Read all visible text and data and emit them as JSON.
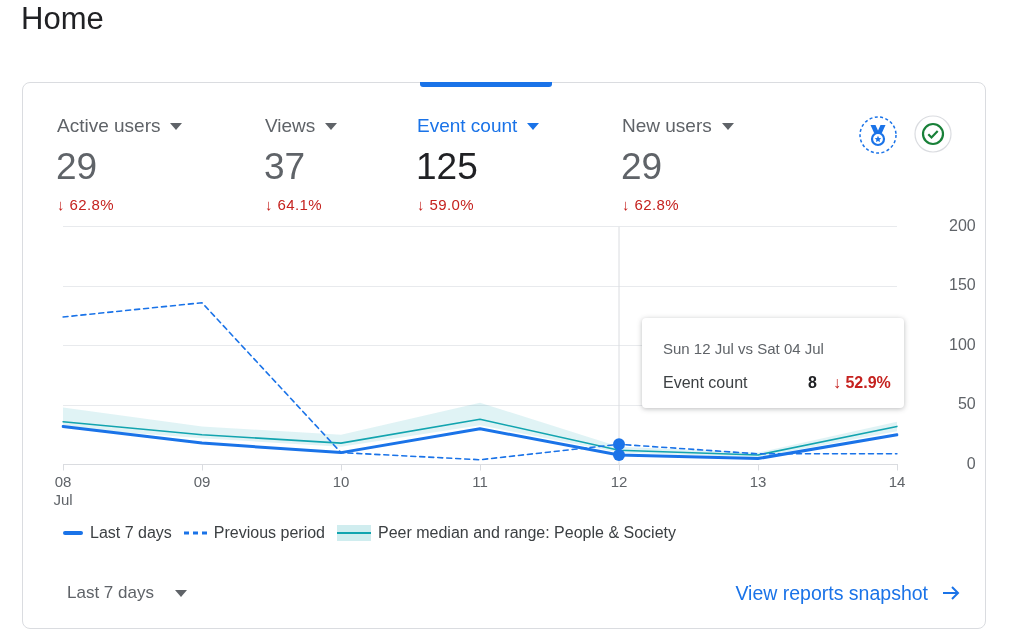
{
  "chart_data": {
    "type": "line",
    "title": "Home",
    "categories": [
      "08\nJul",
      "09",
      "10",
      "11",
      "12",
      "13",
      "14"
    ],
    "series": [
      {
        "name": "Last 7 days",
        "color": "#1a73e8",
        "values": [
          32,
          18,
          10,
          30,
          8,
          5,
          25
        ]
      },
      {
        "name": "Previous period",
        "color": "#1a73e8",
        "line_style": "dashed",
        "values": [
          124,
          136,
          10,
          4,
          17,
          9,
          9
        ]
      },
      {
        "name": "Peer median and range: People & Society",
        "color": "#12a4af",
        "values": [
          36,
          25,
          18,
          38,
          12,
          8,
          32
        ],
        "lower": [
          31,
          22,
          15,
          33,
          10,
          6,
          28
        ],
        "upper": [
          48,
          32,
          25,
          52,
          15,
          10,
          36
        ]
      }
    ],
    "ylim": [
      0,
      200
    ],
    "yticks": [
      0,
      50,
      100,
      150,
      200
    ],
    "grid": "y",
    "legend": "bottom",
    "marker": "none",
    "line_style": "solid",
    "ref_lines": [
      {
        "axis": "x",
        "value": "12",
        "color": "#dadce0"
      }
    ],
    "annotations": [
      "Active users",
      "29",
      "↓ 62.8%",
      "Views",
      "37",
      "↓ 64.1%",
      "Event count",
      "125",
      "↓ 59.0%",
      "New users",
      "29",
      "↓ 62.8%",
      "Sun 12 Jul vs Sat 04 Jul",
      "Event count",
      "8",
      "↓ 52.9%",
      "Last 7 days",
      "View reports snapshot"
    ]
  }
}
